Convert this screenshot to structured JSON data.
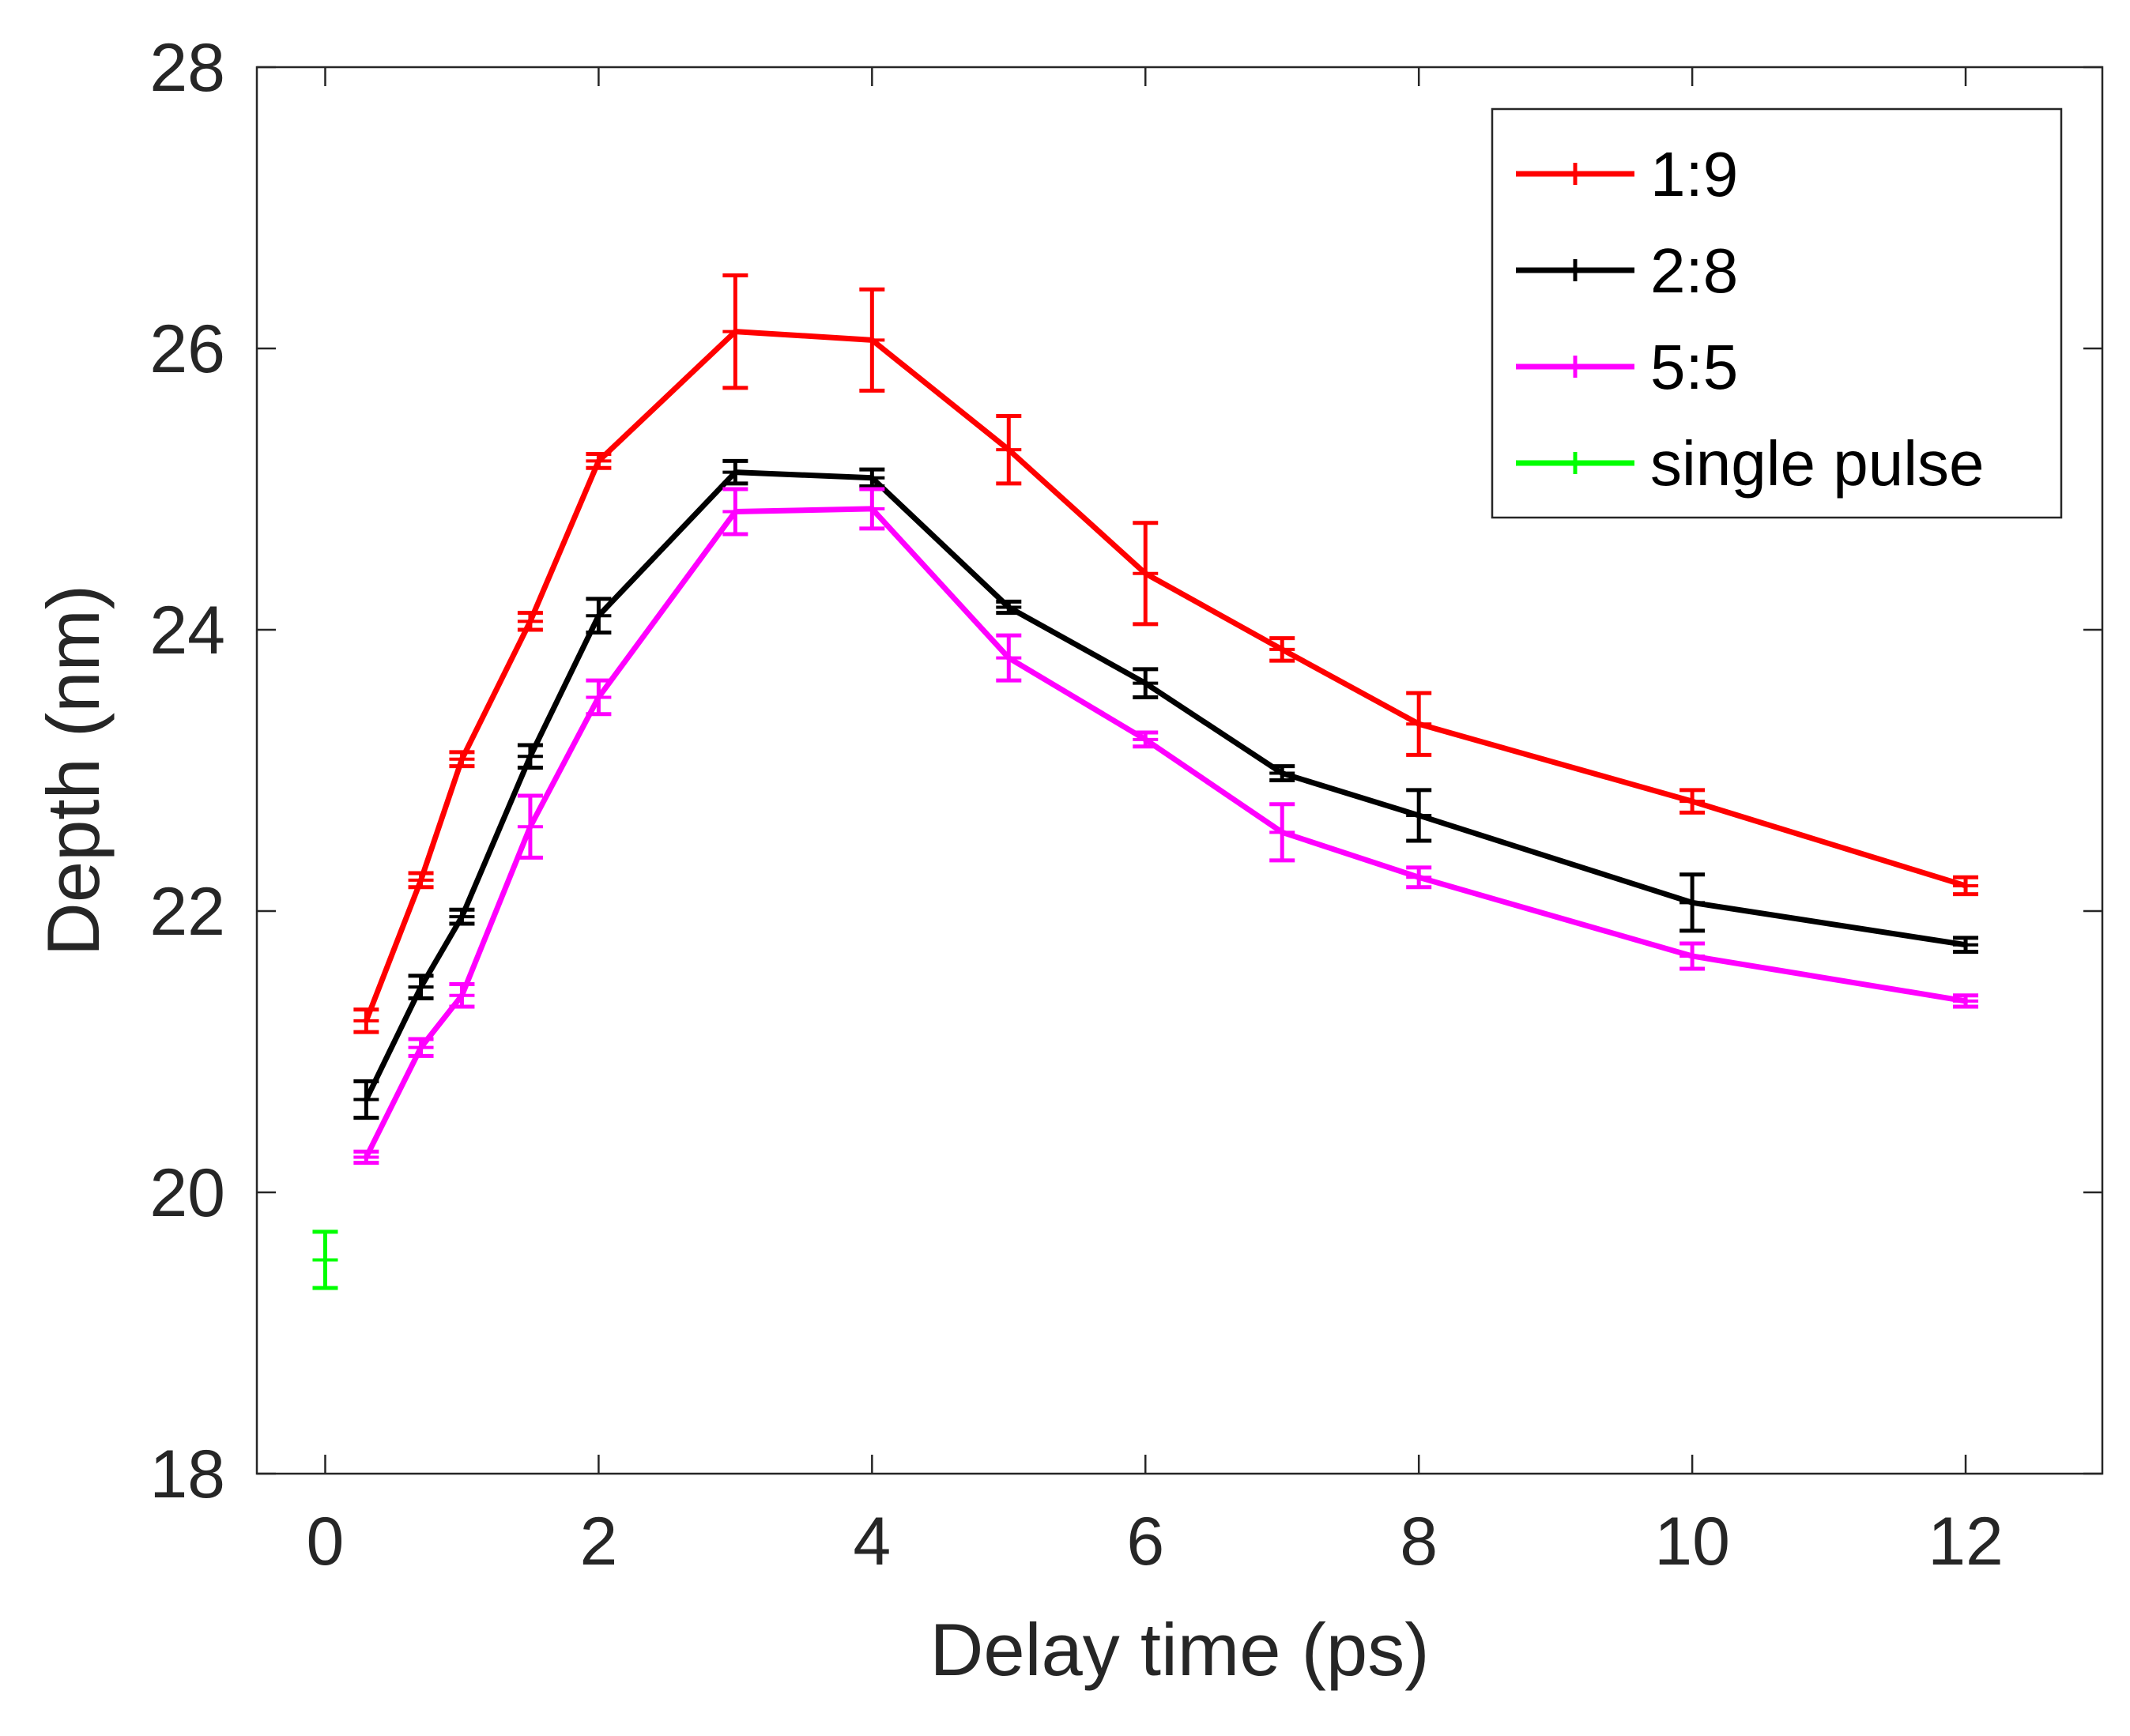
{
  "chart_data": {
    "type": "line",
    "title": "",
    "xlabel": "Delay time (ps)",
    "ylabel": "Depth (nm)",
    "xlim": [
      -0.5,
      13.0
    ],
    "ylim": [
      18,
      28
    ],
    "xticks": [
      0,
      2,
      4,
      6,
      8,
      10,
      12
    ],
    "yticks": [
      18,
      20,
      22,
      24,
      26,
      28
    ],
    "grid": false,
    "legend_position": "top-right",
    "series": [
      {
        "name": "1:9",
        "color": "#ff0000",
        "x": [
          0.3,
          0.7,
          1.0,
          1.5,
          2.0,
          3.0,
          4.0,
          5.0,
          6.0,
          7.0,
          8.0,
          10.0,
          12.0
        ],
        "y": [
          21.22,
          22.22,
          23.08,
          24.06,
          25.2,
          26.12,
          26.06,
          25.28,
          24.4,
          23.86,
          23.33,
          22.78,
          22.18
        ],
        "err": [
          0.08,
          0.05,
          0.05,
          0.06,
          0.05,
          0.4,
          0.36,
          0.24,
          0.36,
          0.08,
          0.22,
          0.08,
          0.06
        ]
      },
      {
        "name": "2:8",
        "color": "#000000",
        "x": [
          0.3,
          0.7,
          1.0,
          1.5,
          2.0,
          3.0,
          4.0,
          5.0,
          6.0,
          7.0,
          8.0,
          10.0,
          12.0
        ],
        "y": [
          20.66,
          21.46,
          21.96,
          23.1,
          24.1,
          25.12,
          25.08,
          24.16,
          23.62,
          22.98,
          22.68,
          22.06,
          21.76
        ],
        "err": [
          0.13,
          0.08,
          0.05,
          0.08,
          0.12,
          0.08,
          0.06,
          0.04,
          0.1,
          0.05,
          0.18,
          0.2,
          0.05
        ]
      },
      {
        "name": "5:5",
        "color": "#ff00ff",
        "x": [
          0.3,
          0.7,
          1.0,
          1.5,
          2.0,
          3.0,
          4.0,
          5.0,
          6.0,
          7.0,
          8.0,
          10.0,
          12.0
        ],
        "y": [
          20.25,
          21.03,
          21.4,
          22.6,
          23.52,
          24.84,
          24.86,
          23.8,
          23.22,
          22.56,
          22.24,
          21.68,
          21.36
        ],
        "err": [
          0.04,
          0.06,
          0.08,
          0.22,
          0.12,
          0.16,
          0.14,
          0.16,
          0.05,
          0.2,
          0.07,
          0.09,
          0.04
        ]
      },
      {
        "name": "single pulse",
        "color": "#00ff00",
        "x": [
          0.0
        ],
        "y": [
          19.52
        ],
        "err": [
          0.2
        ]
      }
    ]
  }
}
